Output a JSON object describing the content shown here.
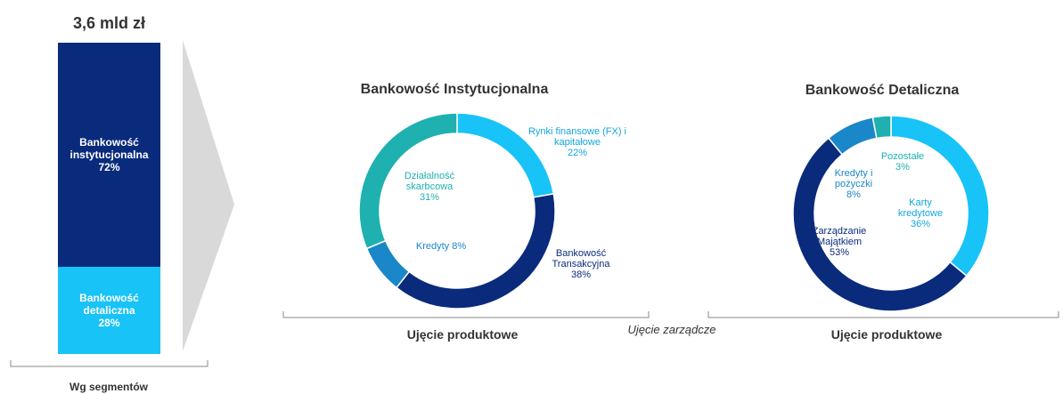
{
  "chart_data": [
    {
      "type": "stacked_bar",
      "title": "3,6 mld zł",
      "xlabel": "Wg segmentów",
      "ylim": [
        0,
        100
      ],
      "series": [
        {
          "name": "Bankowość instytucjonalna",
          "color": "#0a2b7c",
          "values": [
            72
          ],
          "value_labels": [
            "72%"
          ]
        },
        {
          "name": "Bankowość detaliczna",
          "color": "#18c3f7",
          "values": [
            28
          ],
          "value_labels": [
            "28%"
          ]
        }
      ]
    },
    {
      "type": "donut",
      "title": "Bankowość Instytucjonalna",
      "categories": [
        "Rynki finansowe (FX) i kapitałowe",
        "Bankowość Transakcyjna",
        "Kredyty",
        "Działalność skarbcowa"
      ],
      "values": [
        22,
        38,
        8,
        31
      ],
      "value_labels": [
        "22%",
        "38%",
        "8%",
        "31%"
      ],
      "colors": [
        "#18c3f7",
        "#0a2b7c",
        "#1a87c9",
        "#1fb0b0"
      ]
    },
    {
      "type": "donut",
      "title": "Bankowość Detaliczna",
      "categories": [
        "Karty kredytowe",
        "Zarządzanie Majątkiem",
        "Kredyty i pożyczki",
        "Pozostałe"
      ],
      "values": [
        36,
        53,
        8,
        3
      ],
      "value_labels": [
        "36%",
        "53%",
        "8%",
        "3%"
      ],
      "colors": [
        "#18c3f7",
        "#0a2b7c",
        "#1a87c9",
        "#1fb0b0"
      ]
    }
  ],
  "annotations": [
    "Ujęcie produktowe",
    "Ujęcie zarządcze",
    "Ujęcie produktowe"
  ]
}
